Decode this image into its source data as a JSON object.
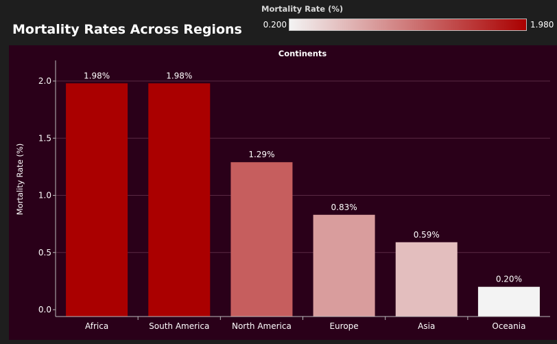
{
  "page": {
    "title": "Mortality Rates Across Regions"
  },
  "legend": {
    "title": "Mortality Rate (%)",
    "min_label": "0.200",
    "max_label": "1.980",
    "min_value": 0.2,
    "max_value": 1.98,
    "low_color": "#f3f3f3",
    "high_color": "#aa0000"
  },
  "colors": {
    "page_background": "#1e1e1e",
    "plot_background": "#2a0019",
    "gridline": "#5a2a44",
    "text": "#ffffff"
  },
  "chart_data": {
    "type": "bar",
    "title": "",
    "header": "Continents",
    "xlabel": "",
    "ylabel": "Mortality Rate (%)",
    "ylim": [
      0,
      2.2
    ],
    "yticks": [
      0.0,
      0.5,
      1.0,
      1.5,
      2.0
    ],
    "ytick_labels": [
      "0.0",
      "0.5",
      "1.0",
      "1.5",
      "2.0"
    ],
    "grid": true,
    "categories": [
      "Africa",
      "South America",
      "North America",
      "Europe",
      "Asia",
      "Oceania"
    ],
    "values": [
      1.98,
      1.98,
      1.29,
      0.83,
      0.59,
      0.2
    ],
    "data_labels": [
      "1.98%",
      "1.98%",
      "1.29%",
      "0.83%",
      "0.59%",
      "0.20%"
    ],
    "color_scale": "value-mapped gradient from #f3f3f3 (0.200) to #aa0000 (1.980)"
  }
}
